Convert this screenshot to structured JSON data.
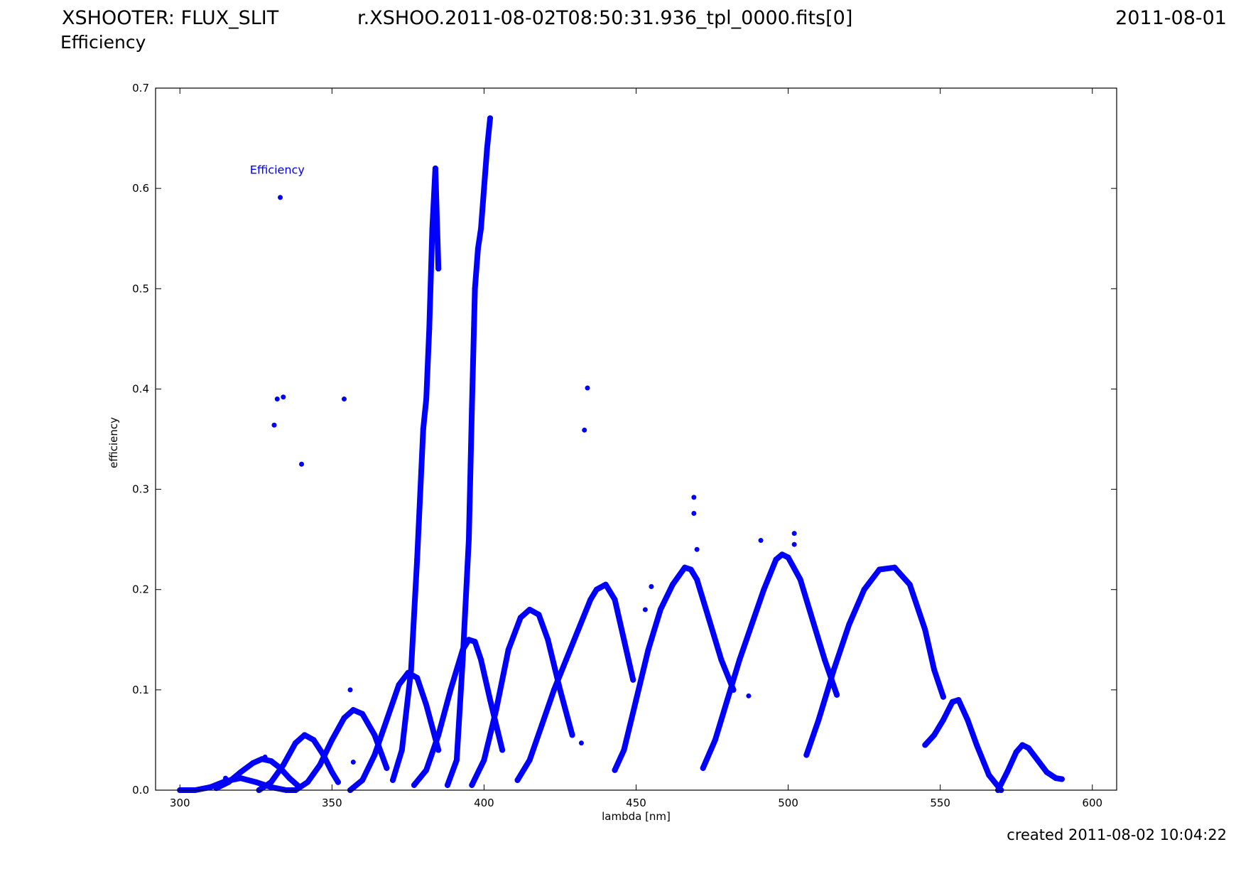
{
  "header": {
    "left_title": "XSHOOTER: FLUX_SLIT",
    "file_name": "r.XSHOO.2011-08-02T08:50:31.936_tpl_0000.fits[0]",
    "date": "2011-08-01",
    "subtitle": "Efficiency"
  },
  "footer": {
    "created": "created 2011-08-02 10:04:22"
  },
  "colors": {
    "series": "#0000ff",
    "axes": "#000000",
    "background": "#ffffff"
  },
  "chart_data": {
    "type": "scatter",
    "title": "",
    "xlabel": "lambda [nm]",
    "ylabel": "efficiency",
    "xlim": [
      292,
      608
    ],
    "ylim": [
      0,
      0.7
    ],
    "xticks": [
      300,
      350,
      400,
      450,
      500,
      550,
      600
    ],
    "yticks": [
      0.0,
      0.1,
      0.2,
      0.3,
      0.4,
      0.5,
      0.6,
      0.7
    ],
    "ytick_labels": [
      "0.0",
      "0.1",
      "0.2",
      "0.3",
      "0.4",
      "0.5",
      "0.6",
      "0.7"
    ],
    "grid": false,
    "legend": {
      "placement": "upper-left",
      "entries": [
        "Efficiency"
      ]
    },
    "series": [
      {
        "name": "Efficiency",
        "order_segments": [
          {
            "x": [
              300,
              305,
              310,
              315,
              320,
              325,
              330,
              335,
              338
            ],
            "y": [
              0.0,
              0.0,
              0.003,
              0.009,
              0.012,
              0.008,
              0.003,
              0.0,
              0.0
            ]
          },
          {
            "x": [
              312,
              316,
              320,
              324,
              327,
              330,
              333,
              336,
              339
            ],
            "y": [
              0.002,
              0.008,
              0.018,
              0.027,
              0.031,
              0.029,
              0.022,
              0.012,
              0.004
            ]
          },
          {
            "x": [
              326,
              330,
              334,
              338,
              341,
              344,
              347,
              350,
              352
            ],
            "y": [
              0.0,
              0.008,
              0.025,
              0.047,
              0.055,
              0.05,
              0.036,
              0.018,
              0.008
            ]
          },
          {
            "x": [
              338,
              342,
              346,
              350,
              354,
              357,
              360,
              364,
              368
            ],
            "y": [
              0.0,
              0.008,
              0.025,
              0.05,
              0.072,
              0.08,
              0.076,
              0.055,
              0.022
            ]
          },
          {
            "x": [
              356,
              360,
              364,
              368,
              372,
              375,
              378,
              381,
              385
            ],
            "y": [
              0.0,
              0.01,
              0.035,
              0.07,
              0.105,
              0.117,
              0.112,
              0.085,
              0.04
            ]
          },
          {
            "x": [
              370,
              373,
              376,
              378,
              380,
              381,
              382,
              383,
              384,
              385
            ],
            "y": [
              0.01,
              0.04,
              0.12,
              0.23,
              0.36,
              0.39,
              0.46,
              0.56,
              0.62,
              0.52
            ]
          },
          {
            "x": [
              377,
              381,
              385,
              389,
              393,
              395,
              397,
              399,
              402,
              406
            ],
            "y": [
              0.005,
              0.02,
              0.055,
              0.1,
              0.14,
              0.15,
              0.148,
              0.13,
              0.09,
              0.04
            ]
          },
          {
            "x": [
              388,
              391,
              393,
              395,
              396,
              397,
              398,
              399,
              400,
              401,
              402
            ],
            "y": [
              0.005,
              0.03,
              0.13,
              0.25,
              0.38,
              0.5,
              0.54,
              0.56,
              0.6,
              0.64,
              0.67
            ]
          },
          {
            "x": [
              396,
              400,
              404,
              408,
              412,
              415,
              418,
              421,
              425,
              429
            ],
            "y": [
              0.005,
              0.03,
              0.08,
              0.14,
              0.172,
              0.18,
              0.175,
              0.15,
              0.1,
              0.055
            ]
          },
          {
            "x": [
              411,
              415,
              419,
              423,
              427,
              431,
              435,
              437,
              440,
              443,
              446,
              449
            ],
            "y": [
              0.01,
              0.03,
              0.065,
              0.1,
              0.13,
              0.16,
              0.19,
              0.2,
              0.205,
              0.19,
              0.15,
              0.11
            ]
          },
          {
            "x": [
              443,
              446,
              450,
              454,
              458,
              462,
              466,
              468,
              470,
              474,
              478,
              482
            ],
            "y": [
              0.02,
              0.04,
              0.09,
              0.14,
              0.18,
              0.205,
              0.222,
              0.22,
              0.21,
              0.17,
              0.13,
              0.1
            ]
          },
          {
            "x": [
              472,
              476,
              480,
              484,
              488,
              492,
              496,
              498,
              500,
              504,
              508,
              512,
              516
            ],
            "y": [
              0.022,
              0.05,
              0.09,
              0.13,
              0.165,
              0.2,
              0.23,
              0.235,
              0.232,
              0.21,
              0.17,
              0.13,
              0.095
            ]
          },
          {
            "x": [
              506,
              510,
              515,
              520,
              525,
              530,
              535,
              540,
              545,
              548,
              551
            ],
            "y": [
              0.035,
              0.07,
              0.12,
              0.165,
              0.2,
              0.22,
              0.222,
              0.205,
              0.16,
              0.12,
              0.093
            ]
          },
          {
            "x": [
              545,
              548,
              551,
              554,
              556,
              559,
              562,
              566,
              570
            ],
            "y": [
              0.045,
              0.055,
              0.07,
              0.088,
              0.09,
              0.07,
              0.045,
              0.015,
              0.0
            ]
          },
          {
            "x": [
              569,
              572,
              575,
              577,
              579,
              582,
              585,
              588,
              590
            ],
            "y": [
              0.0,
              0.018,
              0.038,
              0.045,
              0.042,
              0.03,
              0.018,
              0.012,
              0.011
            ]
          }
        ],
        "outliers": {
          "x": [
            331,
            332,
            333,
            334,
            340,
            354,
            356,
            433,
            434,
            469,
            469,
            470,
            487,
            491,
            502,
            502,
            432,
            453,
            455,
            357,
            315,
            328
          ],
          "y": [
            0.364,
            0.39,
            0.591,
            0.392,
            0.325,
            0.39,
            0.1,
            0.359,
            0.401,
            0.292,
            0.276,
            0.24,
            0.094,
            0.249,
            0.256,
            0.245,
            0.047,
            0.18,
            0.203,
            0.028,
            0.012,
            0.033
          ]
        }
      }
    ]
  }
}
